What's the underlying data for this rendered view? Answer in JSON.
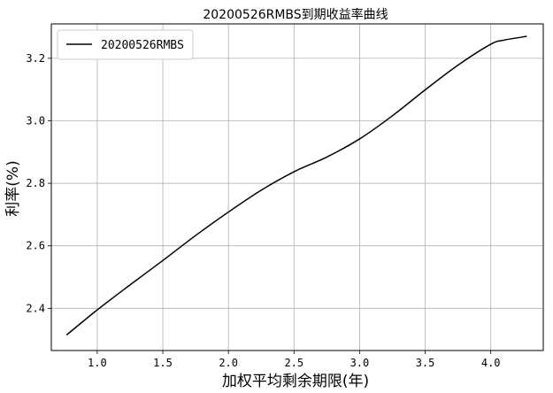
{
  "chart_data": {
    "type": "line",
    "title": "20200526RMBS到期收益率曲线",
    "xlabel": "加权平均剩余期限(年)",
    "ylabel": "利率(%)",
    "xlim": [
      0.65,
      4.4
    ],
    "ylim": [
      2.265,
      3.31
    ],
    "xticks": [
      1.0,
      1.5,
      2.0,
      2.5,
      3.0,
      3.5,
      4.0
    ],
    "xtick_labels": [
      "1.0",
      "1.5",
      "2.0",
      "2.5",
      "3.0",
      "3.5",
      "4.0"
    ],
    "yticks": [
      2.4,
      2.6,
      2.8,
      3.0,
      3.2
    ],
    "ytick_labels": [
      "2.4",
      "2.6",
      "2.8",
      "3.0",
      "3.2"
    ],
    "grid": true,
    "legend_position": "top-left",
    "series": [
      {
        "name": "20200526RMBS",
        "color": "#000000",
        "x": [
          0.77,
          1.0,
          1.25,
          1.5,
          1.75,
          2.0,
          2.25,
          2.5,
          2.75,
          3.0,
          3.25,
          3.5,
          3.75,
          4.0,
          4.1,
          4.27
        ],
        "y": [
          2.316,
          2.395,
          2.475,
          2.553,
          2.633,
          2.708,
          2.778,
          2.837,
          2.884,
          2.942,
          3.016,
          3.099,
          3.178,
          3.245,
          3.258,
          3.27
        ]
      }
    ]
  }
}
